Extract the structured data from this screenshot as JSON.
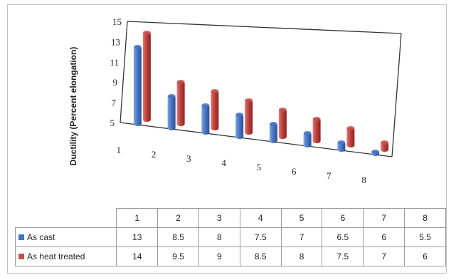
{
  "chart_data": {
    "type": "bar",
    "style": "3d-clustered-column",
    "ylabel": "Ductility (Percent elongation)",
    "xlabel": "",
    "ylim": [
      5,
      15
    ],
    "yticks": [
      5,
      7,
      9,
      11,
      13,
      15
    ],
    "categories": [
      "1",
      "2",
      "3",
      "4",
      "5",
      "6",
      "7",
      "8"
    ],
    "series": [
      {
        "name": "As cast",
        "color": "#4472c4",
        "values": [
          13,
          8.5,
          8,
          7.5,
          7,
          6.5,
          6,
          5.5
        ]
      },
      {
        "name": "As heat treated",
        "color": "#c0504d",
        "values": [
          14,
          9.5,
          9,
          8.5,
          8,
          7.5,
          7,
          6
        ]
      }
    ],
    "legend": "data-table-below",
    "grid": false
  }
}
